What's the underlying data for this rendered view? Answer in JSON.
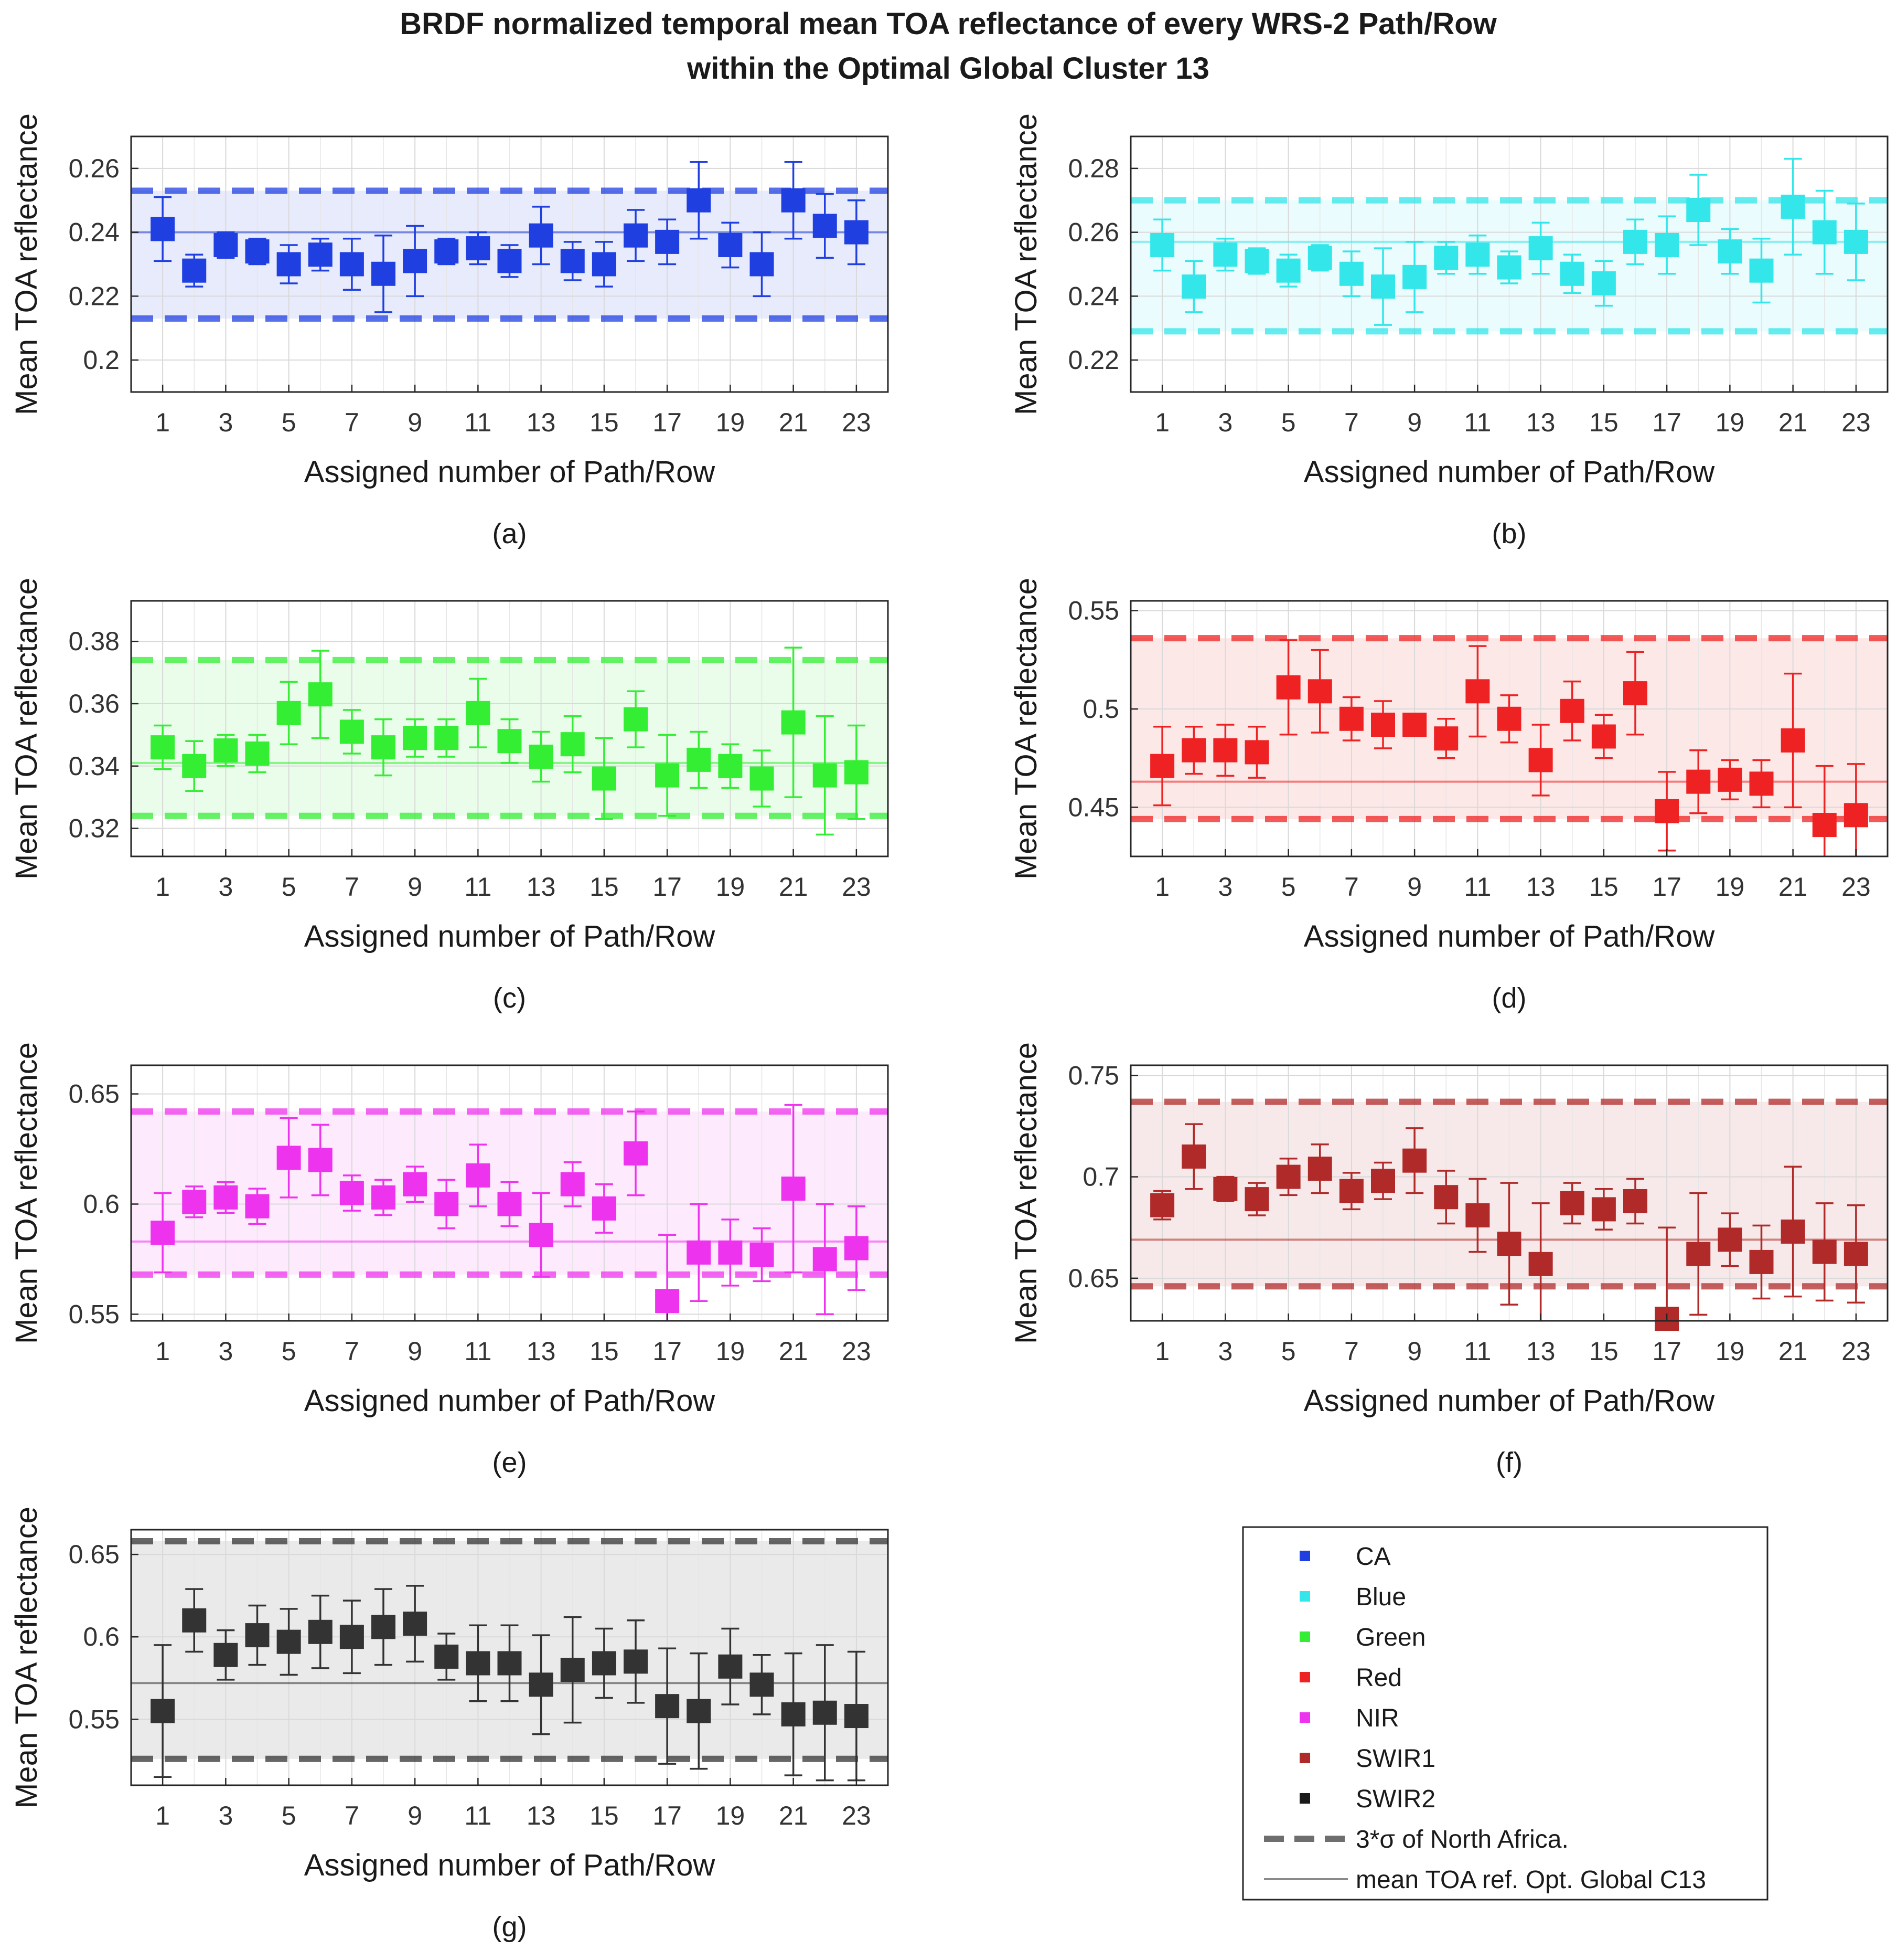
{
  "title_line1": "BRDF normalized temporal mean TOA reflectance of every WRS-2 Path/Row",
  "title_line2": "within the Optimal Global Cluster 13",
  "legend": {
    "items": [
      {
        "label": "CA",
        "color": "#1f3fe0"
      },
      {
        "label": "Blue",
        "color": "#33e6ea"
      },
      {
        "label": "Green",
        "color": "#33ee33"
      },
      {
        "label": "Red",
        "color": "#ee2222"
      },
      {
        "label": "NIR",
        "color": "#ee33ee"
      },
      {
        "label": "SWIR1",
        "color": "#b02a2a"
      },
      {
        "label": "SWIR2",
        "color": "#1a1a1a"
      }
    ],
    "dashed_label": "3*σ of North Africa.",
    "solid_label": "mean TOA ref. Opt. Global C13"
  },
  "chart_data": [
    {
      "type": "scatter",
      "band": "CA",
      "panel_label": "(a)",
      "xlabel": "Assigned number of Path/Row",
      "ylabel": "Mean TOA reflectance",
      "color": "#1f3fe0",
      "xlim": [
        0,
        24
      ],
      "ylim": [
        0.19,
        0.27
      ],
      "yticks": [
        0.2,
        0.22,
        0.24,
        0.26
      ],
      "ytick_labels": [
        "0.2",
        "0.22",
        "0.24",
        "0.26"
      ],
      "xticks": [
        1,
        3,
        5,
        7,
        9,
        11,
        13,
        15,
        17,
        19,
        21,
        23
      ],
      "mean_line": 0.24,
      "sigma_upper": 0.253,
      "sigma_lower": 0.213,
      "x": [
        1,
        2,
        3,
        4,
        5,
        6,
        7,
        8,
        9,
        10,
        11,
        12,
        13,
        14,
        15,
        16,
        17,
        18,
        19,
        20,
        21,
        22,
        23
      ],
      "values": [
        0.241,
        0.228,
        0.236,
        0.234,
        0.23,
        0.233,
        0.23,
        0.227,
        0.231,
        0.234,
        0.235,
        0.231,
        0.239,
        0.231,
        0.23,
        0.239,
        0.237,
        0.25,
        0.236,
        0.23,
        0.25,
        0.242,
        0.24
      ],
      "err": [
        0.01,
        0.005,
        0.004,
        0.004,
        0.006,
        0.005,
        0.008,
        0.012,
        0.011,
        0.004,
        0.005,
        0.005,
        0.009,
        0.006,
        0.007,
        0.008,
        0.007,
        0.012,
        0.007,
        0.01,
        0.012,
        0.01,
        0.01
      ]
    },
    {
      "type": "scatter",
      "band": "Blue",
      "panel_label": "(b)",
      "xlabel": "Assigned number of Path/Row",
      "ylabel": "Mean TOA reflectance",
      "color": "#33e6ea",
      "xlim": [
        0,
        24
      ],
      "ylim": [
        0.21,
        0.29
      ],
      "yticks": [
        0.22,
        0.24,
        0.26,
        0.28
      ],
      "ytick_labels": [
        "0.22",
        "0.24",
        "0.26",
        "0.28"
      ],
      "xticks": [
        1,
        3,
        5,
        7,
        9,
        11,
        13,
        15,
        17,
        19,
        21,
        23
      ],
      "mean_line": 0.257,
      "sigma_upper": 0.27,
      "sigma_lower": 0.229,
      "x": [
        1,
        2,
        3,
        4,
        5,
        6,
        7,
        8,
        9,
        10,
        11,
        12,
        13,
        14,
        15,
        16,
        17,
        18,
        19,
        20,
        21,
        22,
        23
      ],
      "values": [
        0.256,
        0.243,
        0.253,
        0.251,
        0.248,
        0.252,
        0.247,
        0.243,
        0.246,
        0.252,
        0.253,
        0.249,
        0.255,
        0.247,
        0.244,
        0.257,
        0.256,
        0.267,
        0.254,
        0.248,
        0.268,
        0.26,
        0.257
      ],
      "err": [
        0.008,
        0.008,
        0.005,
        0.004,
        0.005,
        0.004,
        0.007,
        0.012,
        0.011,
        0.005,
        0.006,
        0.005,
        0.008,
        0.006,
        0.007,
        0.007,
        0.009,
        0.011,
        0.007,
        0.01,
        0.015,
        0.013,
        0.012
      ]
    },
    {
      "type": "scatter",
      "band": "Green",
      "panel_label": "(c)",
      "xlabel": "Assigned number of Path/Row",
      "ylabel": "Mean TOA reflectance",
      "color": "#33ee33",
      "xlim": [
        0,
        24
      ],
      "ylim": [
        0.311,
        0.393
      ],
      "yticks": [
        0.32,
        0.34,
        0.36,
        0.38
      ],
      "ytick_labels": [
        "0.32",
        "0.34",
        "0.36",
        "0.38"
      ],
      "xticks": [
        1,
        3,
        5,
        7,
        9,
        11,
        13,
        15,
        17,
        19,
        21,
        23
      ],
      "mean_line": 0.341,
      "sigma_upper": 0.374,
      "sigma_lower": 0.324,
      "x": [
        1,
        2,
        3,
        4,
        5,
        6,
        7,
        8,
        9,
        10,
        11,
        12,
        13,
        14,
        15,
        16,
        17,
        18,
        19,
        20,
        21,
        22,
        23
      ],
      "values": [
        0.346,
        0.34,
        0.345,
        0.344,
        0.357,
        0.363,
        0.351,
        0.346,
        0.349,
        0.349,
        0.357,
        0.348,
        0.343,
        0.347,
        0.336,
        0.355,
        0.337,
        0.342,
        0.34,
        0.336,
        0.354,
        0.337,
        0.338
      ],
      "err": [
        0.007,
        0.008,
        0.005,
        0.006,
        0.01,
        0.014,
        0.007,
        0.009,
        0.006,
        0.006,
        0.011,
        0.007,
        0.008,
        0.009,
        0.013,
        0.009,
        0.013,
        0.009,
        0.007,
        0.009,
        0.024,
        0.019,
        0.015
      ]
    },
    {
      "type": "scatter",
      "band": "Red",
      "panel_label": "(d)",
      "xlabel": "Assigned number of Path/Row",
      "ylabel": "Mean TOA reflectance",
      "color": "#ee2222",
      "xlim": [
        0,
        24
      ],
      "ylim": [
        0.425,
        0.555
      ],
      "yticks": [
        0.45,
        0.5,
        0.55
      ],
      "ytick_labels": [
        "0.45",
        "0.5",
        "0.55"
      ],
      "xticks": [
        1,
        3,
        5,
        7,
        9,
        11,
        13,
        15,
        17,
        19,
        21,
        23
      ],
      "mean_line": 0.463,
      "sigma_upper": 0.536,
      "sigma_lower": 0.444,
      "x": [
        1,
        2,
        3,
        4,
        5,
        6,
        7,
        8,
        9,
        10,
        11,
        12,
        13,
        14,
        15,
        16,
        17,
        18,
        19,
        20,
        21,
        22,
        23
      ],
      "values": [
        0.471,
        0.479,
        0.479,
        0.478,
        0.511,
        0.509,
        0.495,
        0.492,
        0.492,
        0.485,
        0.509,
        0.495,
        0.474,
        0.499,
        0.486,
        0.508,
        0.448,
        0.463,
        0.464,
        0.462,
        0.484,
        0.441,
        0.446
      ],
      "err": [
        0.02,
        0.012,
        0.013,
        0.013,
        0.024,
        0.021,
        0.011,
        0.012,
        0.004,
        0.01,
        0.023,
        0.012,
        0.018,
        0.015,
        0.011,
        0.021,
        0.02,
        0.016,
        0.01,
        0.012,
        0.034,
        0.03,
        0.026
      ]
    },
    {
      "type": "scatter",
      "band": "NIR",
      "panel_label": "(e)",
      "xlabel": "Assigned number of Path/Row",
      "ylabel": "Mean TOA reflectance",
      "color": "#ee33ee",
      "xlim": [
        0,
        24
      ],
      "ylim": [
        0.547,
        0.663
      ],
      "yticks": [
        0.55,
        0.6,
        0.65
      ],
      "ytick_labels": [
        "0.55",
        "0.6",
        "0.65"
      ],
      "xticks": [
        1,
        3,
        5,
        7,
        9,
        11,
        13,
        15,
        17,
        19,
        21,
        23
      ],
      "mean_line": 0.583,
      "sigma_upper": 0.642,
      "sigma_lower": 0.568,
      "x": [
        1,
        2,
        3,
        4,
        5,
        6,
        7,
        8,
        9,
        10,
        11,
        12,
        13,
        14,
        15,
        16,
        17,
        18,
        19,
        20,
        21,
        22,
        23
      ],
      "values": [
        0.587,
        0.601,
        0.603,
        0.599,
        0.621,
        0.62,
        0.605,
        0.603,
        0.609,
        0.6,
        0.613,
        0.6,
        0.586,
        0.609,
        0.598,
        0.623,
        0.556,
        0.578,
        0.578,
        0.577,
        0.607,
        0.575,
        0.58
      ],
      "err": [
        0.018,
        0.007,
        0.007,
        0.008,
        0.018,
        0.016,
        0.008,
        0.008,
        0.008,
        0.011,
        0.014,
        0.01,
        0.019,
        0.01,
        0.011,
        0.019,
        0.03,
        0.022,
        0.015,
        0.012,
        0.038,
        0.025,
        0.019
      ]
    },
    {
      "type": "scatter",
      "band": "SWIR1",
      "panel_label": "(f)",
      "xlabel": "Assigned number of Path/Row",
      "ylabel": "Mean TOA reflectance",
      "color": "#b02a2a",
      "xlim": [
        0,
        24
      ],
      "ylim": [
        0.629,
        0.755
      ],
      "yticks": [
        0.65,
        0.7,
        0.75
      ],
      "ytick_labels": [
        "0.65",
        "0.7",
        "0.75"
      ],
      "xticks": [
        1,
        3,
        5,
        7,
        9,
        11,
        13,
        15,
        17,
        19,
        21,
        23
      ],
      "mean_line": 0.669,
      "sigma_upper": 0.737,
      "sigma_lower": 0.646,
      "x": [
        1,
        2,
        3,
        4,
        5,
        6,
        7,
        8,
        9,
        10,
        11,
        12,
        13,
        14,
        15,
        16,
        17,
        18,
        19,
        20,
        21,
        22,
        23
      ],
      "values": [
        0.686,
        0.71,
        0.694,
        0.689,
        0.7,
        0.704,
        0.693,
        0.698,
        0.708,
        0.69,
        0.681,
        0.667,
        0.657,
        0.687,
        0.684,
        0.688,
        0.63,
        0.662,
        0.669,
        0.658,
        0.673,
        0.663,
        0.662
      ],
      "err": [
        0.007,
        0.016,
        0.006,
        0.008,
        0.009,
        0.012,
        0.009,
        0.009,
        0.016,
        0.013,
        0.018,
        0.03,
        0.03,
        0.01,
        0.01,
        0.011,
        0.045,
        0.03,
        0.013,
        0.018,
        0.032,
        0.024,
        0.024
      ]
    },
    {
      "type": "scatter",
      "band": "SWIR2",
      "panel_label": "(g)",
      "xlabel": "Assigned number of Path/Row",
      "ylabel": "Mean TOA reflectance",
      "color": "#333333",
      "xlim": [
        0,
        24
      ],
      "ylim": [
        0.51,
        0.665
      ],
      "yticks": [
        0.55,
        0.6,
        0.65
      ],
      "ytick_labels": [
        "0.55",
        "0.6",
        "0.65"
      ],
      "xticks": [
        1,
        3,
        5,
        7,
        9,
        11,
        13,
        15,
        17,
        19,
        21,
        23
      ],
      "mean_line": 0.572,
      "sigma_upper": 0.658,
      "sigma_lower": 0.526,
      "x": [
        1,
        2,
        3,
        4,
        5,
        6,
        7,
        8,
        9,
        10,
        11,
        12,
        13,
        14,
        15,
        16,
        17,
        18,
        19,
        20,
        21,
        22,
        23
      ],
      "values": [
        0.555,
        0.61,
        0.589,
        0.601,
        0.597,
        0.603,
        0.6,
        0.606,
        0.608,
        0.588,
        0.584,
        0.584,
        0.571,
        0.58,
        0.584,
        0.585,
        0.558,
        0.555,
        0.582,
        0.571,
        0.553,
        0.554,
        0.552
      ],
      "err": [
        0.04,
        0.019,
        0.015,
        0.018,
        0.02,
        0.022,
        0.022,
        0.023,
        0.023,
        0.014,
        0.023,
        0.023,
        0.03,
        0.032,
        0.021,
        0.025,
        0.035,
        0.035,
        0.023,
        0.018,
        0.037,
        0.041,
        0.039
      ]
    }
  ]
}
